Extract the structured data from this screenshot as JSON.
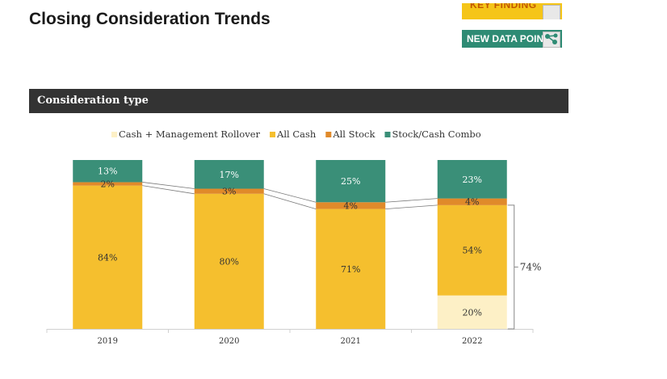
{
  "title": "Closing Consideration Trends",
  "tags": {
    "key_finding": "KEY FINDING",
    "new_data_point": "NEW DATA POINT"
  },
  "section_header": "Consideration type",
  "colors": {
    "cash_mgmt": "#fdf0c6",
    "all_cash": "#f5bf2e",
    "all_stock": "#e08a2a",
    "combo": "#3a8f78"
  },
  "chart_data": {
    "type": "bar",
    "stacked": true,
    "categories": [
      "2019",
      "2020",
      "2021",
      "2022"
    ],
    "series": [
      {
        "name": "Cash + Management Rollover",
        "values": [
          0,
          0,
          0,
          20
        ],
        "labels": [
          "",
          "",
          "",
          "20%"
        ]
      },
      {
        "name": "All Cash",
        "values": [
          84,
          80,
          71,
          54
        ],
        "labels": [
          "84%",
          "80%",
          "71%",
          "54%"
        ]
      },
      {
        "name": "All Stock",
        "values": [
          2,
          3,
          4,
          4
        ],
        "labels": [
          "2%",
          "3%",
          "4%",
          "4%"
        ]
      },
      {
        "name": "Stock/Cash Combo",
        "values": [
          13,
          17,
          25,
          23
        ],
        "labels": [
          "13%",
          "17%",
          "25%",
          "23%"
        ]
      }
    ],
    "annotation": "74%",
    "ylim": [
      0,
      100
    ],
    "legend_position": "top"
  }
}
